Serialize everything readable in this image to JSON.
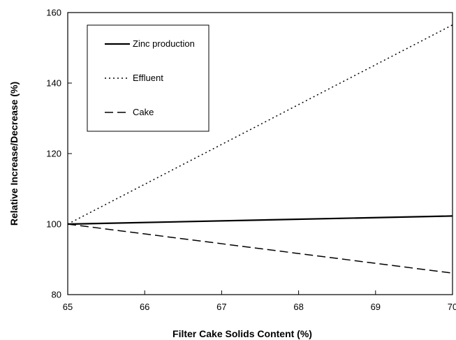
{
  "chart_data": {
    "type": "line",
    "title": "",
    "xlabel": "Filter Cake Solids Content (%)",
    "ylabel": "Relative Increase/Decrease (%)",
    "xlim": [
      65,
      70
    ],
    "ylim": [
      80,
      160
    ],
    "x_ticks": [
      "65",
      "66",
      "67",
      "68",
      "69",
      "70"
    ],
    "y_ticks": [
      "80",
      "100",
      "120",
      "140",
      "160"
    ],
    "grid": false,
    "legend_placement": "top-left",
    "series": [
      {
        "name": "Zinc production",
        "style": "solid",
        "color": "#000000",
        "x": [
          65,
          70
        ],
        "y": [
          100,
          102.3
        ]
      },
      {
        "name": "Effluent",
        "style": "dotted",
        "color": "#000000",
        "x": [
          65,
          70
        ],
        "y": [
          100,
          156.5
        ]
      },
      {
        "name": "Cake",
        "style": "dashed",
        "color": "#000000",
        "x": [
          65,
          70
        ],
        "y": [
          100,
          86.1
        ]
      }
    ]
  }
}
